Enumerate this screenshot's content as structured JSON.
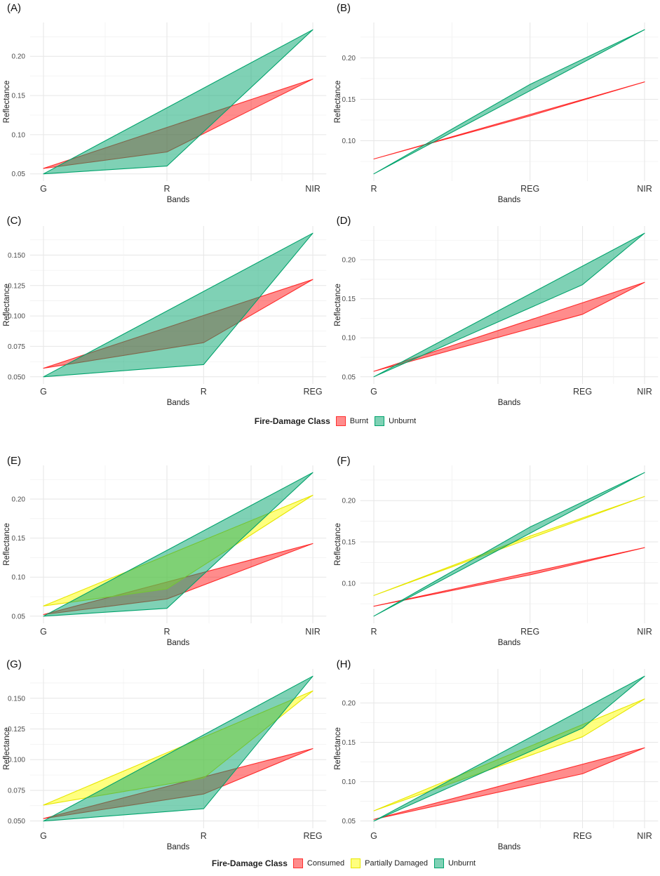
{
  "chart_data": [
    {
      "type": "area",
      "panel_label": "(A)",
      "bands": [
        "G",
        "R",
        "NIR"
      ],
      "x": [
        550,
        660,
        790
      ],
      "xlabel": "Bands",
      "ylabel": "Reflectance",
      "ylim": [
        0.05,
        0.234
      ],
      "yticks": [
        "0.05",
        "0.10",
        "0.15",
        "0.20"
      ],
      "series": [
        {
          "name": "Burnt",
          "color": "#FF0000",
          "values": [
            0.057,
            0.078,
            0.171
          ]
        },
        {
          "name": "Unburnt",
          "color": "#00A36C",
          "values": [
            0.05,
            0.06,
            0.234
          ]
        }
      ]
    },
    {
      "type": "area",
      "panel_label": "(B)",
      "bands": [
        "R",
        "REG",
        "NIR"
      ],
      "x": [
        660,
        735,
        790
      ],
      "xlabel": "Bands",
      "ylabel": "Reflectance",
      "ylim": [
        0.06,
        0.234
      ],
      "yticks": [
        "0.10",
        "0.15",
        "0.20"
      ],
      "series": [
        {
          "name": "Burnt",
          "color": "#FF0000",
          "values": [
            0.078,
            0.13,
            0.171
          ]
        },
        {
          "name": "Unburnt",
          "color": "#00A36C",
          "values": [
            0.06,
            0.168,
            0.234
          ]
        }
      ]
    },
    {
      "type": "area",
      "panel_label": "(C)",
      "bands": [
        "G",
        "R",
        "REG"
      ],
      "x": [
        550,
        660,
        735
      ],
      "xlabel": "Bands",
      "ylabel": "Reflectance",
      "ylim": [
        0.05,
        0.168
      ],
      "yticks": [
        "0.050",
        "0.075",
        "0.100",
        "0.125",
        "0.150"
      ],
      "series": [
        {
          "name": "Burnt",
          "color": "#FF0000",
          "values": [
            0.057,
            0.078,
            0.13
          ]
        },
        {
          "name": "Unburnt",
          "color": "#00A36C",
          "values": [
            0.05,
            0.06,
            0.168
          ]
        }
      ]
    },
    {
      "type": "area",
      "panel_label": "(D)",
      "bands": [
        "G",
        "REG",
        "NIR"
      ],
      "x": [
        550,
        735,
        790
      ],
      "xlabel": "Bands",
      "ylabel": "Reflectance",
      "ylim": [
        0.05,
        0.234
      ],
      "yticks": [
        "0.05",
        "0.10",
        "0.15",
        "0.20"
      ],
      "series": [
        {
          "name": "Burnt",
          "color": "#FF0000",
          "values": [
            0.057,
            0.13,
            0.171
          ]
        },
        {
          "name": "Unburnt",
          "color": "#00A36C",
          "values": [
            0.05,
            0.168,
            0.234
          ]
        }
      ]
    },
    {
      "type": "area",
      "panel_label": "(E)",
      "bands": [
        "G",
        "R",
        "NIR"
      ],
      "x": [
        550,
        660,
        790
      ],
      "xlabel": "Bands",
      "ylabel": "Reflectance",
      "ylim": [
        0.05,
        0.234
      ],
      "yticks": [
        "0.05",
        "0.10",
        "0.15",
        "0.20"
      ],
      "series": [
        {
          "name": "Consumed",
          "color": "#FF0000",
          "values": [
            0.052,
            0.072,
            0.143
          ]
        },
        {
          "name": "Partially Damaged",
          "color": "#FFFF00",
          "values": [
            0.063,
            0.085,
            0.205
          ]
        },
        {
          "name": "Unburnt",
          "color": "#00A36C",
          "values": [
            0.05,
            0.06,
            0.234
          ]
        }
      ]
    },
    {
      "type": "area",
      "panel_label": "(F)",
      "bands": [
        "R",
        "REG",
        "NIR"
      ],
      "x": [
        660,
        735,
        790
      ],
      "xlabel": "Bands",
      "ylabel": "Reflectance",
      "ylim": [
        0.06,
        0.234
      ],
      "yticks": [
        "0.10",
        "0.15",
        "0.20"
      ],
      "series": [
        {
          "name": "Consumed",
          "color": "#FF0000",
          "values": [
            0.072,
            0.11,
            0.143
          ]
        },
        {
          "name": "Partially Damaged",
          "color": "#FFFF00",
          "values": [
            0.085,
            0.157,
            0.205
          ]
        },
        {
          "name": "Unburnt",
          "color": "#00A36C",
          "values": [
            0.06,
            0.168,
            0.234
          ]
        }
      ]
    },
    {
      "type": "area",
      "panel_label": "(G)",
      "bands": [
        "G",
        "R",
        "REG"
      ],
      "x": [
        550,
        660,
        735
      ],
      "xlabel": "Bands",
      "ylabel": "Reflectance",
      "ylim": [
        0.05,
        0.168
      ],
      "yticks": [
        "0.050",
        "0.075",
        "0.100",
        "0.125",
        "0.150"
      ],
      "series": [
        {
          "name": "Consumed",
          "color": "#FF0000",
          "values": [
            0.052,
            0.072,
            0.109
          ]
        },
        {
          "name": "Partially Damaged",
          "color": "#FFFF00",
          "values": [
            0.063,
            0.085,
            0.156
          ]
        },
        {
          "name": "Unburnt",
          "color": "#00A36C",
          "values": [
            0.05,
            0.06,
            0.168
          ]
        }
      ]
    },
    {
      "type": "area",
      "panel_label": "(H)",
      "bands": [
        "G",
        "REG",
        "NIR"
      ],
      "x": [
        550,
        735,
        790
      ],
      "xlabel": "Bands",
      "ylabel": "Reflectance",
      "ylim": [
        0.05,
        0.234
      ],
      "yticks": [
        "0.05",
        "0.10",
        "0.15",
        "0.20"
      ],
      "series": [
        {
          "name": "Consumed",
          "color": "#FF0000",
          "values": [
            0.052,
            0.11,
            0.143
          ]
        },
        {
          "name": "Partially Damaged",
          "color": "#FFFF00",
          "values": [
            0.063,
            0.157,
            0.205
          ]
        },
        {
          "name": "Unburnt",
          "color": "#00A36C",
          "values": [
            0.05,
            0.168,
            0.234
          ]
        }
      ]
    }
  ],
  "legends": [
    {
      "title": "Fire-Damage Class",
      "items": [
        {
          "label": "Burnt",
          "color": "#FF0000"
        },
        {
          "label": "Unburnt",
          "color": "#00A36C"
        }
      ]
    },
    {
      "title": "Fire-Damage Class",
      "items": [
        {
          "label": "Consumed",
          "color": "#FF0000"
        },
        {
          "label": "Partially Damaged",
          "color": "#FFFF00"
        },
        {
          "label": "Unburnt",
          "color": "#00A36C"
        }
      ]
    }
  ]
}
